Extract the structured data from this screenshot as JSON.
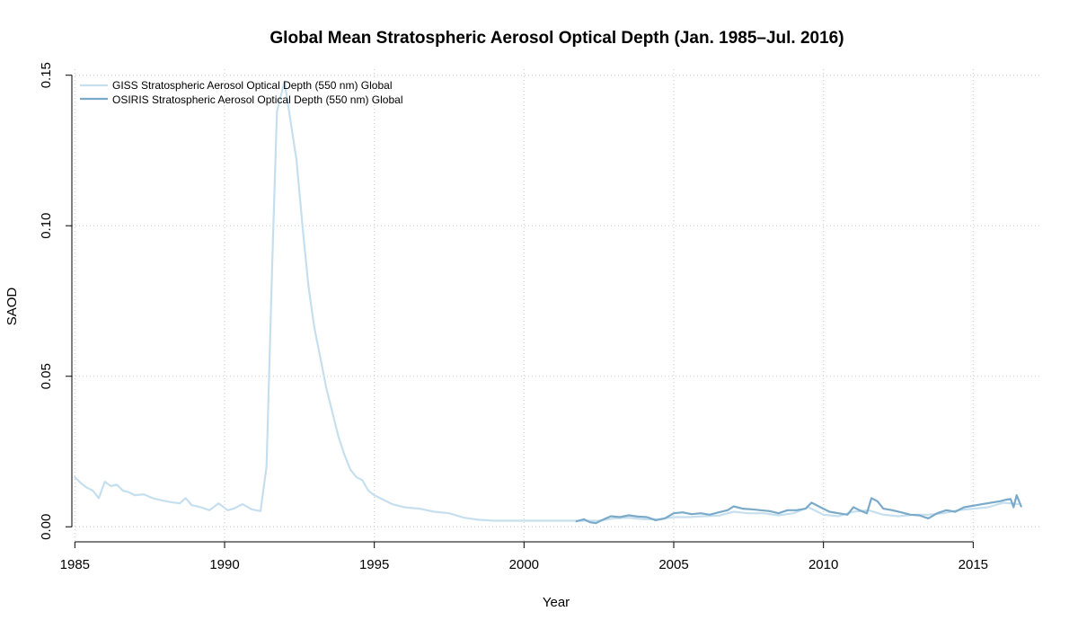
{
  "chart_data": {
    "type": "line",
    "title": "Global Mean Stratospheric Aerosol Optical Depth (Jan. 1985–Jul. 2016)",
    "xlabel": "Year",
    "ylabel": "SAOD",
    "xlim": [
      1984.9,
      2017.3
    ],
    "ylim": [
      -0.005,
      0.152
    ],
    "x_ticks": [
      1985,
      1990,
      1995,
      2000,
      2005,
      2010,
      2015
    ],
    "x_tick_labels": [
      "1985",
      "1990",
      "1995",
      "2000",
      "2005",
      "2010",
      "2015"
    ],
    "y_ticks": [
      0.0,
      0.05,
      0.1,
      0.15
    ],
    "y_tick_labels": [
      "0.00",
      "0.05",
      "0.10",
      "0.15"
    ],
    "grid": true,
    "legend_position": "top-left",
    "series": [
      {
        "name": "GISS Stratospheric Aerosol Optical Depth (550 nm) Global",
        "color": "#c6dfee",
        "x": [
          1985.0,
          1985.2,
          1985.4,
          1985.6,
          1985.8,
          1986.0,
          1986.2,
          1986.4,
          1986.6,
          1986.8,
          1987.0,
          1987.3,
          1987.6,
          1987.9,
          1988.2,
          1988.5,
          1988.7,
          1988.9,
          1989.2,
          1989.5,
          1989.8,
          1990.1,
          1990.3,
          1990.6,
          1990.9,
          1991.2,
          1991.4,
          1991.6,
          1991.75,
          1991.85,
          1992.0,
          1992.2,
          1992.4,
          1992.6,
          1992.8,
          1993.0,
          1993.2,
          1993.4,
          1993.6,
          1993.8,
          1994.0,
          1994.2,
          1994.4,
          1994.6,
          1994.8,
          1995.0,
          1995.3,
          1995.6,
          1996.0,
          1996.5,
          1997.0,
          1997.5,
          1998.0,
          1998.5,
          1999.0,
          1999.5,
          2000.0,
          2000.5,
          2001.0,
          2001.5,
          2002.0,
          2002.5,
          2003.0,
          2003.5,
          2004.0,
          2004.5,
          2005.0,
          2005.5,
          2006.0,
          2006.5,
          2007.0,
          2007.5,
          2008.0,
          2008.5,
          2009.0,
          2009.5,
          2010.0,
          2010.5,
          2011.0,
          2011.5,
          2012.0,
          2012.5,
          2013.0,
          2013.5,
          2014.0,
          2014.5,
          2015.0,
          2015.5,
          2016.0,
          2016.5
        ],
        "values": [
          0.0165,
          0.0145,
          0.013,
          0.012,
          0.0095,
          0.015,
          0.0135,
          0.014,
          0.012,
          0.0115,
          0.0105,
          0.0108,
          0.0095,
          0.0088,
          0.0082,
          0.0078,
          0.0095,
          0.0072,
          0.0065,
          0.0055,
          0.0078,
          0.0055,
          0.006,
          0.0075,
          0.0058,
          0.0052,
          0.02,
          0.09,
          0.138,
          0.142,
          0.148,
          0.135,
          0.122,
          0.1,
          0.08,
          0.066,
          0.056,
          0.046,
          0.038,
          0.03,
          0.024,
          0.019,
          0.0165,
          0.0155,
          0.012,
          0.0105,
          0.009,
          0.0075,
          0.0065,
          0.006,
          0.005,
          0.0045,
          0.003,
          0.0023,
          0.002,
          0.002,
          0.002,
          0.002,
          0.002,
          0.002,
          0.002,
          0.002,
          0.0028,
          0.003,
          0.0025,
          0.0025,
          0.0032,
          0.0032,
          0.0035,
          0.0037,
          0.005,
          0.0045,
          0.0045,
          0.0038,
          0.0045,
          0.0065,
          0.004,
          0.0035,
          0.005,
          0.0055,
          0.004,
          0.0035,
          0.004,
          0.004,
          0.0045,
          0.0055,
          0.006,
          0.0065,
          0.008,
          0.0075
        ]
      },
      {
        "name": "OSIRIS Stratospheric Aerosol Optical Depth (550 nm) Global",
        "color": "#7aaac9",
        "x": [
          2001.75,
          2002.0,
          2002.2,
          2002.4,
          2002.6,
          2002.9,
          2003.2,
          2003.5,
          2003.8,
          2004.1,
          2004.4,
          2004.7,
          2005.0,
          2005.3,
          2005.6,
          2005.9,
          2006.2,
          2006.5,
          2006.8,
          2007.0,
          2007.3,
          2007.6,
          2007.9,
          2008.2,
          2008.5,
          2008.8,
          2009.1,
          2009.4,
          2009.6,
          2009.9,
          2010.2,
          2010.5,
          2010.8,
          2011.0,
          2011.2,
          2011.45,
          2011.6,
          2011.8,
          2012.0,
          2012.3,
          2012.6,
          2012.9,
          2013.2,
          2013.5,
          2013.8,
          2014.1,
          2014.4,
          2014.7,
          2015.0,
          2015.3,
          2015.6,
          2015.9,
          2016.1,
          2016.25,
          2016.35,
          2016.45,
          2016.6
        ],
        "values": [
          0.0018,
          0.0025,
          0.0015,
          0.0012,
          0.0022,
          0.0035,
          0.0032,
          0.0038,
          0.0034,
          0.0032,
          0.0022,
          0.0028,
          0.0045,
          0.0048,
          0.0042,
          0.0045,
          0.004,
          0.0048,
          0.0055,
          0.0068,
          0.006,
          0.0058,
          0.0055,
          0.0052,
          0.0045,
          0.0055,
          0.0055,
          0.006,
          0.008,
          0.0065,
          0.005,
          0.0045,
          0.004,
          0.0065,
          0.0055,
          0.0045,
          0.0095,
          0.0085,
          0.006,
          0.0055,
          0.0048,
          0.004,
          0.0038,
          0.0028,
          0.0045,
          0.0055,
          0.005,
          0.0065,
          0.007,
          0.0075,
          0.008,
          0.0085,
          0.009,
          0.0092,
          0.0065,
          0.0105,
          0.0068
        ]
      }
    ]
  }
}
